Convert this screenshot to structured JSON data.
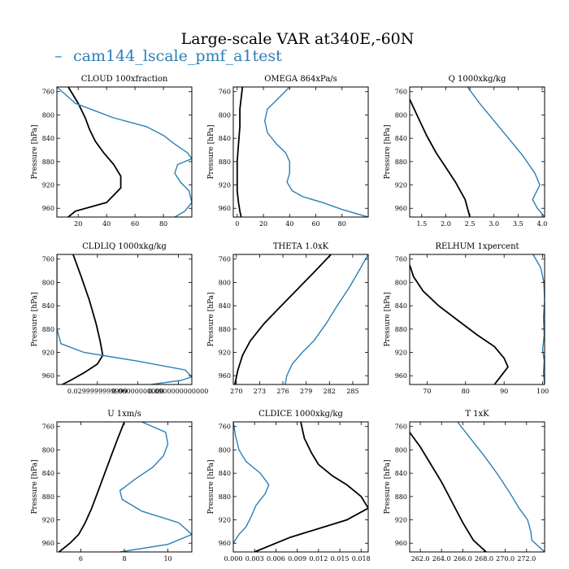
{
  "figure": {
    "title": "Large-scale VAR at340E,-60N",
    "legend_label": "cam144_lscale_pmf_a1test",
    "legend_symbol": "–"
  },
  "colors": {
    "case": "#2a7fb5",
    "obs": "#000000",
    "frame": "#000000"
  },
  "chart_data": [
    {
      "type": "line",
      "title": "CLOUD 100xfraction",
      "xlabel": "",
      "ylabel": "Pressure [hPa]",
      "xlim": [
        5,
        100
      ],
      "ylim": [
        975,
        752
      ],
      "xticks": [
        20,
        40,
        60,
        80
      ],
      "xtick_labels": [
        "20",
        "40",
        "60",
        "80"
      ],
      "yticks": [
        760,
        800,
        840,
        880,
        920,
        960
      ],
      "ytick_labels": [
        "760",
        "800",
        "840",
        "880",
        "920",
        "960"
      ],
      "series": [
        {
          "role": "obs",
          "x": [
            13,
            20,
            25,
            28,
            32,
            38,
            45,
            50,
            50,
            40,
            18,
            13
          ],
          "y": [
            752,
            780,
            805,
            825,
            845,
            865,
            885,
            905,
            925,
            950,
            965,
            975
          ]
        },
        {
          "role": "case",
          "x": [
            5,
            18,
            45,
            68,
            80,
            88,
            97,
            100,
            90,
            88,
            92,
            98,
            100,
            95,
            88
          ],
          "y": [
            752,
            780,
            805,
            820,
            835,
            850,
            865,
            875,
            885,
            900,
            915,
            930,
            950,
            965,
            975
          ]
        }
      ]
    },
    {
      "type": "line",
      "title": "OMEGA 864xPa/s",
      "xlabel": "",
      "ylabel": "Pressure [hPa]",
      "xlim": [
        -3,
        100
      ],
      "ylim": [
        975,
        752
      ],
      "xticks": [
        0,
        20,
        40,
        60,
        80
      ],
      "xtick_labels": [
        "0",
        "20",
        "40",
        "60",
        "80"
      ],
      "yticks": [
        760,
        800,
        840,
        880,
        920,
        960
      ],
      "ytick_labels": [
        "760",
        "800",
        "840",
        "880",
        "920",
        "960"
      ],
      "series": [
        {
          "role": "obs",
          "x": [
            4,
            2,
            2,
            1,
            0,
            0,
            0,
            1,
            2,
            3
          ],
          "y": [
            752,
            790,
            820,
            850,
            880,
            905,
            930,
            950,
            965,
            975
          ]
        },
        {
          "role": "case",
          "x": [
            40,
            32,
            23,
            21,
            23,
            30,
            37,
            40,
            40,
            38,
            42,
            50,
            65,
            80,
            100
          ],
          "y": [
            752,
            770,
            790,
            810,
            830,
            850,
            865,
            880,
            900,
            915,
            930,
            940,
            950,
            962,
            975
          ]
        }
      ]
    },
    {
      "type": "line",
      "title": "Q 1000xkg/kg",
      "xlabel": "",
      "ylabel": "Pressure [hPa]",
      "xlim": [
        1.25,
        4.05
      ],
      "ylim": [
        975,
        752
      ],
      "xticks": [
        1.5,
        2.0,
        2.5,
        3.0,
        3.5,
        4.0
      ],
      "xtick_labels": [
        "1.5",
        "2.0",
        "2.5",
        "3.0",
        "3.5",
        "4.0"
      ],
      "yticks": [
        760,
        800,
        840,
        880,
        920,
        960
      ],
      "ytick_labels": [
        "760",
        "800",
        "840",
        "880",
        "920",
        "960"
      ],
      "series": [
        {
          "role": "obs",
          "x": [
            1.25,
            1.4,
            1.6,
            1.8,
            2.0,
            2.2,
            2.4,
            2.5
          ],
          "y": [
            773,
            800,
            835,
            865,
            890,
            915,
            945,
            975
          ]
        },
        {
          "role": "case",
          "x": [
            2.45,
            2.7,
            3.0,
            3.3,
            3.6,
            3.85,
            3.95,
            3.8,
            3.9,
            4.05
          ],
          "y": [
            752,
            780,
            810,
            840,
            870,
            900,
            920,
            945,
            960,
            975
          ]
        }
      ]
    },
    {
      "type": "line",
      "title": "CLDLIQ 1000xkg/kg",
      "xlabel": "",
      "ylabel": "Pressure [hPa]",
      "xlim": [
        0.0,
        0.1
      ],
      "ylim": [
        975,
        752
      ],
      "xticks": [
        0.03,
        0.06,
        0.09
      ],
      "xtick_labels": [
        "0.0299999999999",
        "0.06000000000",
        "0.0900000000000"
      ],
      "yticks": [
        760,
        800,
        840,
        880,
        920,
        960
      ],
      "ytick_labels": [
        "760",
        "800",
        "840",
        "880",
        "920",
        "960"
      ],
      "series": [
        {
          "role": "obs",
          "x": [
            0.012,
            0.018,
            0.024,
            0.029,
            0.032,
            0.034,
            0.03,
            0.02,
            0.01,
            0.004
          ],
          "y": [
            752,
            790,
            830,
            870,
            900,
            925,
            940,
            955,
            968,
            975
          ]
        },
        {
          "role": "case",
          "x": [
            0.0,
            0.0,
            0.0,
            0.0,
            0.0,
            0.003,
            0.02,
            0.06,
            0.095,
            0.1,
            0.092,
            0.07
          ],
          "y": [
            752,
            790,
            820,
            850,
            880,
            905,
            920,
            935,
            950,
            962,
            968,
            975
          ]
        }
      ]
    },
    {
      "type": "line",
      "title": "THETA 1.0xK",
      "xlabel": "",
      "ylabel": "Pressure [hPa]",
      "xlim": [
        269.6,
        287.0
      ],
      "ylim": [
        975,
        752
      ],
      "xticks": [
        270,
        273,
        276,
        279,
        282,
        285
      ],
      "xtick_labels": [
        "270",
        "273",
        "276",
        "279",
        "282",
        "285"
      ],
      "yticks": [
        760,
        800,
        840,
        880,
        920,
        960
      ],
      "ytick_labels": [
        "760",
        "800",
        "840",
        "880",
        "920",
        "960"
      ],
      "series": [
        {
          "role": "obs",
          "x": [
            282.2,
            280.2,
            278.0,
            275.8,
            273.6,
            271.8,
            270.8,
            270.2,
            269.8
          ],
          "y": [
            752,
            780,
            810,
            840,
            870,
            900,
            925,
            950,
            975
          ]
        },
        {
          "role": "case",
          "x": [
            287.0,
            285.8,
            284.5,
            283.0,
            281.6,
            280.0,
            278.5,
            277.2,
            276.5,
            276.3
          ],
          "y": [
            752,
            780,
            810,
            840,
            870,
            900,
            920,
            940,
            960,
            975
          ]
        }
      ]
    },
    {
      "type": "line",
      "title": "RELHUM 1xpercent",
      "xlabel": "",
      "ylabel": "Pressure [hPa]",
      "xlim": [
        65.5,
        100.5
      ],
      "ylim": [
        975,
        752
      ],
      "xticks": [
        70,
        80,
        90,
        100
      ],
      "xtick_labels": [
        "70",
        "80",
        "90",
        "100"
      ],
      "yticks": [
        760,
        800,
        840,
        880,
        920,
        960
      ],
      "ytick_labels": [
        "760",
        "800",
        "840",
        "880",
        "920",
        "960"
      ],
      "series": [
        {
          "role": "obs",
          "x": [
            65.5,
            66.5,
            69.0,
            73.0,
            78.0,
            83.0,
            87.5,
            90.0,
            91.0,
            89.0,
            87.5
          ],
          "y": [
            770,
            790,
            815,
            840,
            865,
            890,
            910,
            930,
            945,
            962,
            975
          ]
        },
        {
          "role": "case",
          "x": [
            97.5,
            99.5,
            100.3,
            100.5,
            100.2,
            100.4,
            100.0,
            100.4,
            100.2,
            100.5
          ],
          "y": [
            752,
            775,
            800,
            830,
            860,
            890,
            915,
            935,
            955,
            975
          ]
        }
      ]
    },
    {
      "type": "line",
      "title": "U 1xm/s",
      "xlabel": "",
      "ylabel": "Pressure [hPa]",
      "xlim": [
        4.9,
        11.1
      ],
      "ylim": [
        975,
        752
      ],
      "xticks": [
        6,
        8,
        10
      ],
      "xtick_labels": [
        "6",
        "8",
        "10"
      ],
      "yticks": [
        760,
        800,
        840,
        880,
        920,
        960
      ],
      "ytick_labels": [
        "760",
        "800",
        "840",
        "880",
        "920",
        "960"
      ],
      "series": [
        {
          "role": "obs",
          "x": [
            8.0,
            7.7,
            7.4,
            7.1,
            6.8,
            6.5,
            6.2,
            5.9,
            5.5,
            5.0
          ],
          "y": [
            752,
            780,
            810,
            840,
            870,
            900,
            925,
            945,
            960,
            975
          ]
        },
        {
          "role": "case",
          "x": [
            8.8,
            9.9,
            10.0,
            9.8,
            9.3,
            8.5,
            7.8,
            7.9,
            8.8,
            10.5,
            11.1,
            10.0,
            7.8
          ],
          "y": [
            752,
            770,
            790,
            810,
            830,
            850,
            870,
            885,
            905,
            925,
            945,
            962,
            975
          ]
        }
      ]
    },
    {
      "type": "line",
      "title": "CLDICE 1000xkg/kg",
      "xlabel": "",
      "ylabel": "Pressure [hPa]",
      "xlim": [
        0.0,
        0.019
      ],
      "ylim": [
        975,
        752
      ],
      "xticks": [
        0.0,
        0.003,
        0.006,
        0.009,
        0.012,
        0.015,
        0.018
      ],
      "xtick_labels": [
        "0.000",
        "0.003",
        "0.006",
        "0.009",
        "0.012",
        "0.015",
        "0.018"
      ],
      "yticks": [
        760,
        800,
        840,
        880,
        920,
        960
      ],
      "ytick_labels": [
        "760",
        "800",
        "840",
        "880",
        "920",
        "960"
      ],
      "series": [
        {
          "role": "obs",
          "x": [
            0.0095,
            0.01,
            0.011,
            0.012,
            0.014,
            0.016,
            0.018,
            0.019,
            0.016,
            0.008,
            0.003
          ],
          "y": [
            752,
            780,
            805,
            825,
            845,
            860,
            880,
            900,
            920,
            950,
            975
          ]
        },
        {
          "role": "case",
          "x": [
            0.0,
            0.0003,
            0.0008,
            0.0018,
            0.0038,
            0.005,
            0.0045,
            0.0032,
            0.0025,
            0.0018,
            0.0008,
            0.0
          ],
          "y": [
            752,
            775,
            800,
            820,
            840,
            860,
            875,
            895,
            915,
            932,
            945,
            960
          ]
        }
      ]
    },
    {
      "type": "line",
      "title": "T 1xK",
      "xlabel": "",
      "ylabel": "Pressure [hPa]",
      "xlim": [
        261.0,
        273.7
      ],
      "ylim": [
        975,
        752
      ],
      "xticks": [
        262.0,
        264.0,
        266.0,
        268.0,
        270.0,
        272.0
      ],
      "xtick_labels": [
        "262.0",
        "264.0",
        "266.0",
        "268.0",
        "270.0",
        "272.0"
      ],
      "yticks": [
        760,
        800,
        840,
        880,
        920,
        960
      ],
      "ytick_labels": [
        "760",
        "800",
        "840",
        "880",
        "920",
        "960"
      ],
      "series": [
        {
          "role": "obs",
          "x": [
            261.0,
            262.0,
            263.0,
            264.0,
            265.0,
            266.0,
            267.0,
            268.2
          ],
          "y": [
            770,
            795,
            825,
            855,
            890,
            925,
            955,
            975
          ]
        },
        {
          "role": "case",
          "x": [
            265.5,
            266.7,
            268.0,
            269.2,
            270.3,
            271.3,
            272.1,
            272.4,
            272.5,
            273.7
          ],
          "y": [
            752,
            780,
            810,
            840,
            870,
            900,
            920,
            940,
            955,
            975
          ]
        }
      ]
    }
  ]
}
